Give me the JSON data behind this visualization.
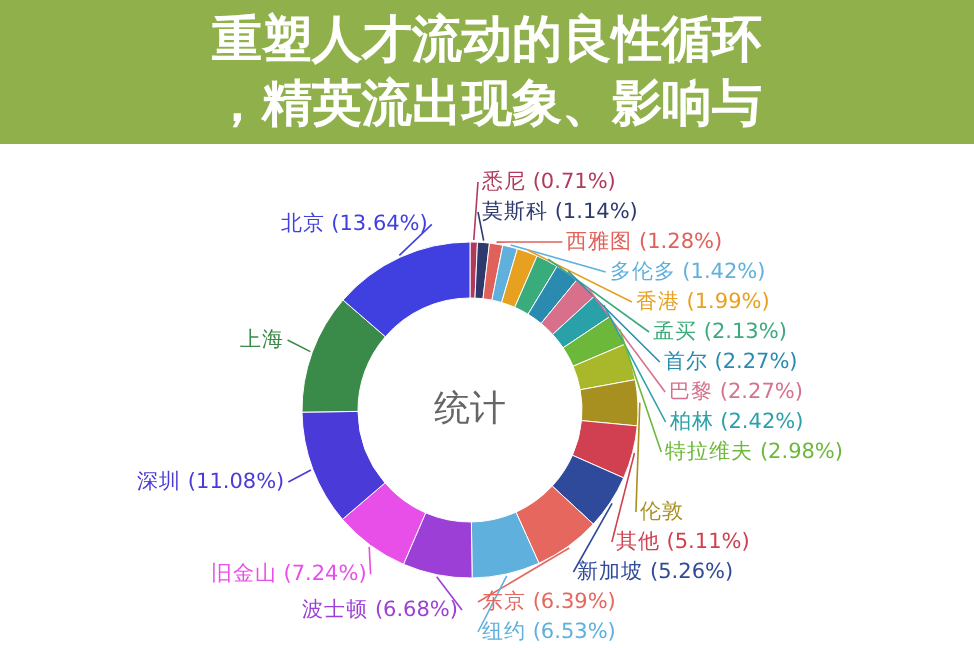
{
  "chart_data": {
    "type": "donut",
    "title": "重塑人才流动的良性循环，精英流出现象、影响与",
    "annotations": [
      "统计"
    ],
    "categories": [
      "悉尼 (0.71%)",
      "莫斯科 (1.14%)",
      "西雅图 (1.28%)",
      "多伦多 (1.42%)",
      "香港 (1.99%)",
      "孟买 (2.13%)",
      "首尔 (2.27%)",
      "巴黎 (2.27%)",
      "柏林 (2.42%)",
      "特拉维夫 (2.98%)",
      null,
      "伦敦",
      "其他 (5.11%)",
      "新加坡 (5.26%)",
      "东京 (6.39%)",
      "纽约 (6.53%)",
      "波士顿 (6.68%)",
      "旧金山 (7.24%)",
      "深圳 (11.08%)",
      "上海",
      "北京 (13.64%)"
    ],
    "values": [
      0.71,
      1.14,
      1.28,
      1.42,
      1.99,
      2.13,
      2.27,
      2.27,
      2.42,
      2.98,
      3.5,
      4.4,
      5.11,
      5.26,
      6.39,
      6.53,
      6.68,
      7.24,
      11.08,
      11.56,
      13.64
    ],
    "colors": [
      "#b03a5b",
      "#2e3a6e",
      "#e0605a",
      "#5fb0dc",
      "#e8a020",
      "#3aab7a",
      "#2a8ab0",
      "#d8708c",
      "#2aa0a8",
      "#6cb83a",
      "#a8b82a",
      "#a89020",
      "#d04050",
      "#2f4a9a",
      "#e5675e",
      "#5fb0dc",
      "#9c3fd6",
      "#e84ee8",
      "#4a3ad8",
      "#3a8a4a",
      "#4040e0"
    ]
  }
}
